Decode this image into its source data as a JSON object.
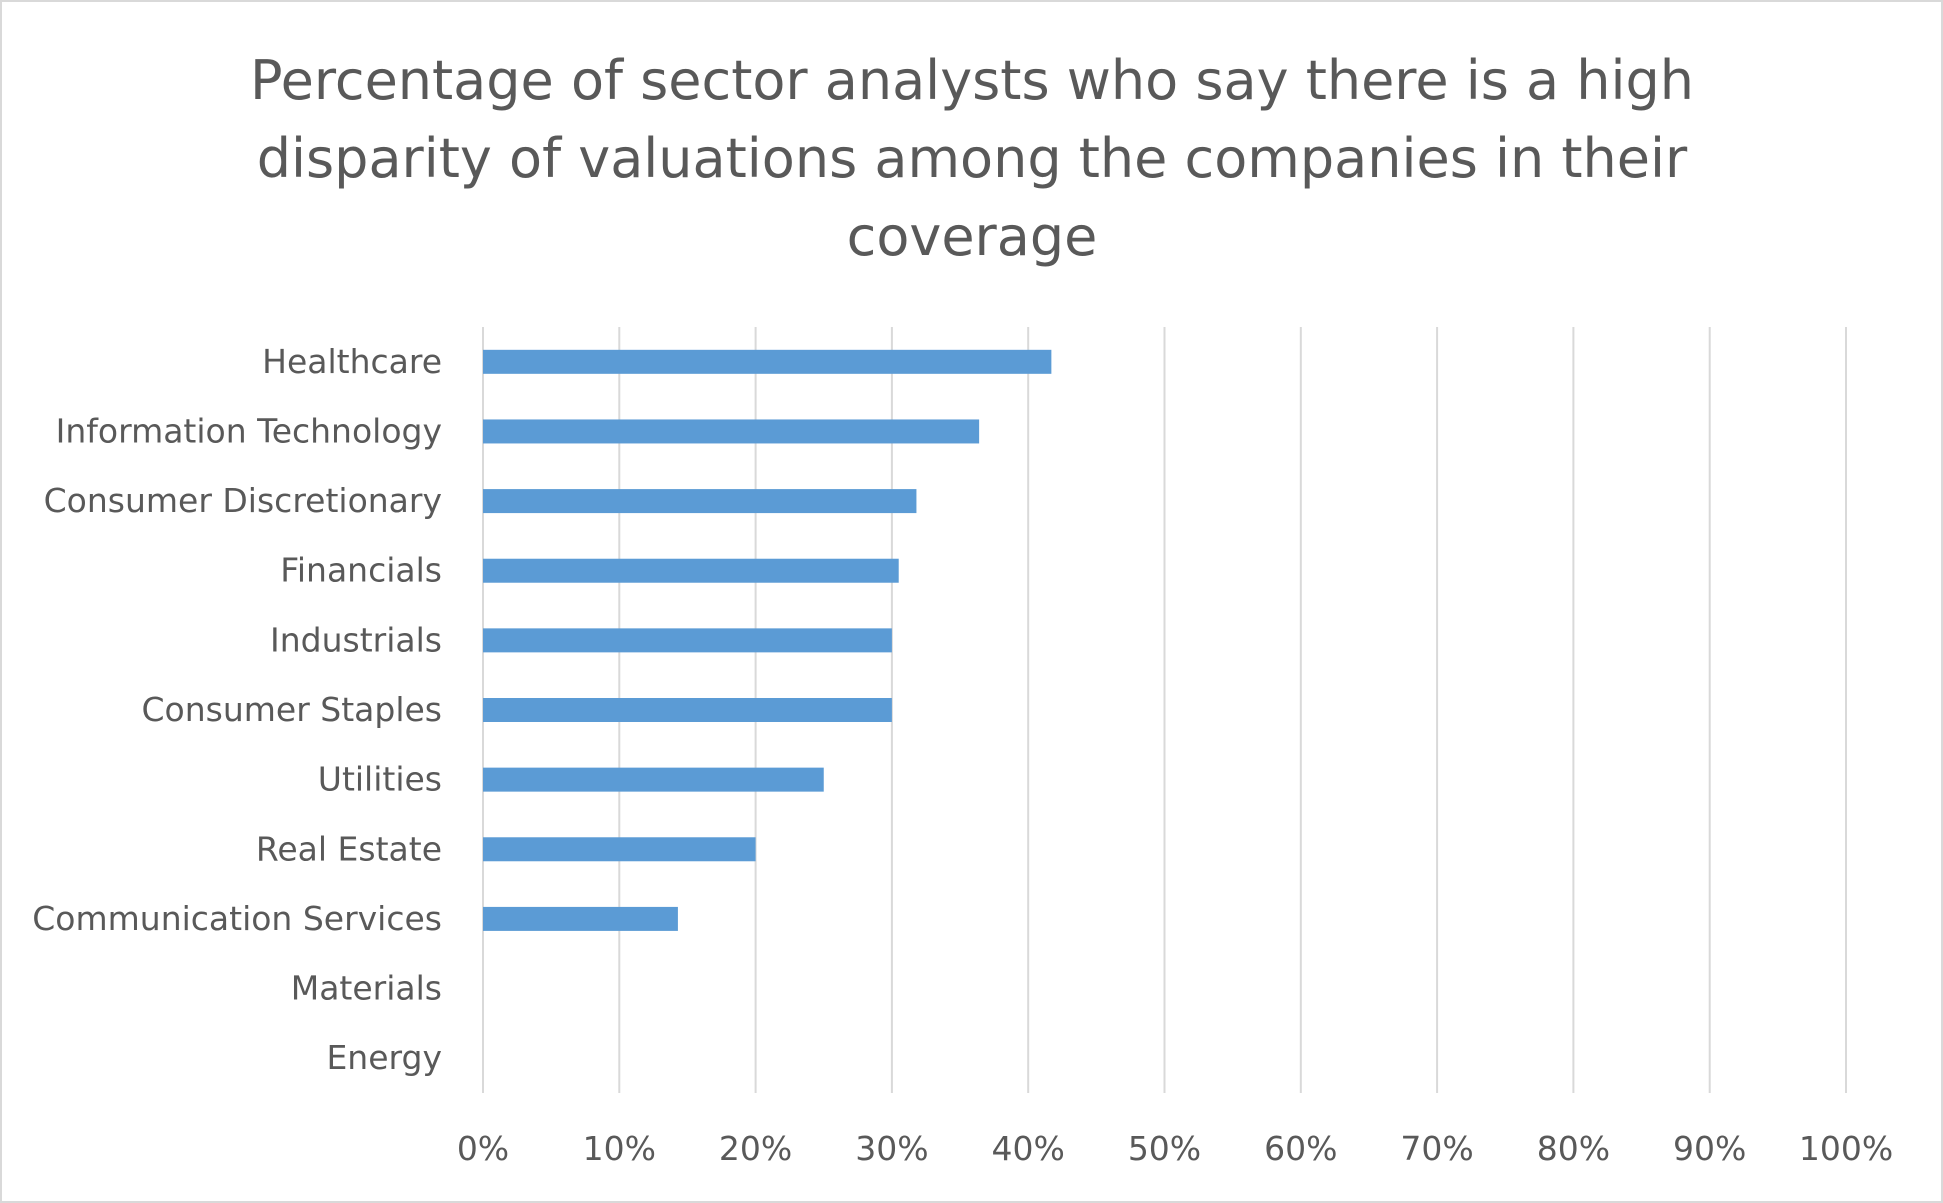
{
  "chart_data": {
    "type": "bar",
    "orientation": "horizontal",
    "title": "Percentage of sector analysts who say there is a high disparity of valuations among the companies in their coverage",
    "categories": [
      "Healthcare",
      "Information Technology",
      "Consumer Discretionary",
      "Financials",
      "Industrials",
      "Consumer Staples",
      "Utilities",
      "Real Estate",
      "Communication Services",
      "Materials",
      "Energy"
    ],
    "values": [
      41.7,
      36.4,
      31.8,
      30.5,
      30.0,
      30.0,
      25.0,
      20.0,
      14.3,
      0,
      0
    ],
    "xlim": [
      0,
      100
    ],
    "xticks": [
      "0%",
      "10%",
      "20%",
      "30%",
      "40%",
      "50%",
      "60%",
      "70%",
      "80%",
      "90%",
      "100%"
    ],
    "grid": "vertical",
    "legend": "none",
    "colors": {
      "bar": "#5b9bd5",
      "grid": "#d9d9d9",
      "text": "#595959",
      "frame": "#d9d9d9"
    }
  }
}
